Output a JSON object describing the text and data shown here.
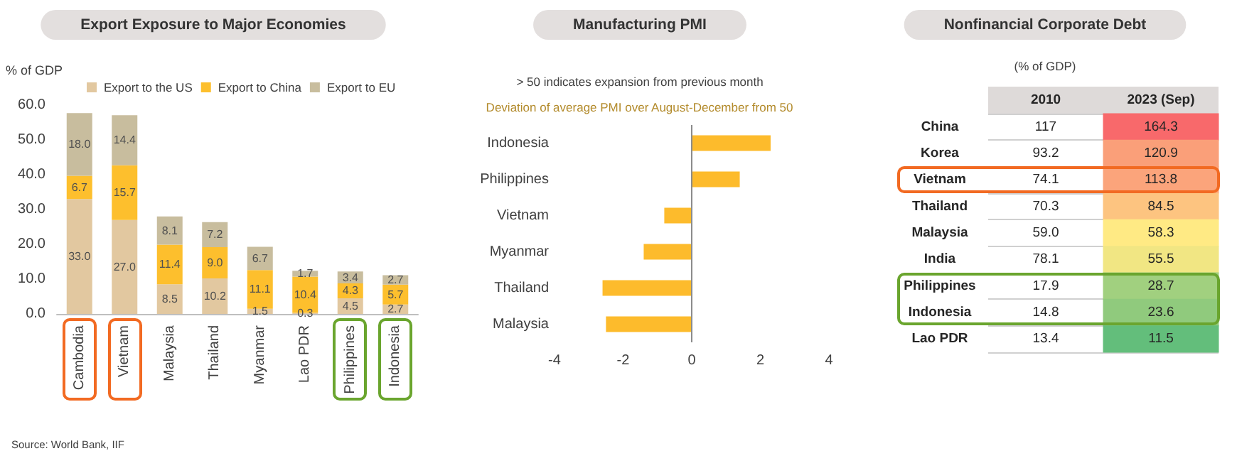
{
  "chart_data": [
    {
      "type": "bar",
      "title": "Export Exposure to Major Economies",
      "ylabel": "% of GDP",
      "stacked": true,
      "legend": "top",
      "categories": [
        "Cambodia",
        "Vietnam",
        "Malaysia",
        "Thailand",
        "Myanmar",
        "Lao PDR",
        "Philippines",
        "Indonesia"
      ],
      "series": [
        {
          "name": "Export to the US",
          "color": "#e2c8a0",
          "values": [
            33.0,
            27.0,
            8.5,
            10.2,
            1.5,
            0.3,
            4.5,
            2.7
          ],
          "value_labels": [
            "33.0",
            "27.0",
            "8.5",
            "10.2",
            "1.5",
            "0.3",
            "4.5",
            "2.7"
          ]
        },
        {
          "name": "Export to China",
          "color": "#fdbf2d",
          "values": [
            6.7,
            15.7,
            11.4,
            9.0,
            11.1,
            10.4,
            4.3,
            5.7
          ],
          "value_labels": [
            "6.7",
            "15.7",
            "11.4",
            "9.0",
            "11.1",
            "10.4",
            "4.3",
            "5.7"
          ]
        },
        {
          "name": "Export to EU",
          "color": "#c8bd9e",
          "values": [
            18.0,
            14.4,
            8.1,
            7.2,
            6.7,
            1.7,
            3.4,
            2.7
          ],
          "value_labels": [
            "18.0",
            "14.4",
            "8.1",
            "7.2",
            "6.7",
            "1.7",
            "3.4",
            "2.7"
          ]
        }
      ],
      "ylim": [
        0,
        60
      ],
      "yticks": [
        {
          "value": 0,
          "label": "0.0"
        },
        {
          "value": 10,
          "label": "10.0"
        },
        {
          "value": 20,
          "label": "20.0"
        },
        {
          "value": 30,
          "label": "30.0"
        },
        {
          "value": 40,
          "label": "40.0"
        },
        {
          "value": 50,
          "label": "50.0"
        },
        {
          "value": 60,
          "label": "60.0"
        }
      ],
      "grid": false,
      "annotations": [
        "Source: World Bank, IIF"
      ]
    },
    {
      "type": "bar",
      "title": "Manufacturing PMI",
      "subtitle": "> 50 indicates expansion from previous month",
      "orientation": "horizontal",
      "categories": [
        "Indonesia",
        "Philippines",
        "Vietnam",
        "Myanmar",
        "Thailand",
        "Malaysia"
      ],
      "values": [
        2.3,
        1.4,
        -0.8,
        -1.4,
        -2.6,
        -2.5
      ],
      "color": "#fdbb2c",
      "xlim": [
        -4,
        4
      ],
      "xticks": [
        -4,
        -2,
        0,
        2,
        4
      ],
      "grid": false,
      "ref_lines": [
        {
          "axis": "x",
          "value": 0,
          "color": "#8c8c8c"
        }
      ],
      "annotations": [
        "Deviation of average PMI over August-December from 50"
      ]
    },
    {
      "type": "heatmap",
      "title": "Nonfinancial Corporate Debt",
      "subtitle": "(% of GDP)",
      "categories": [
        "2010",
        "2023 (Sep)"
      ],
      "y_categories": [
        "China",
        "Korea",
        "Vietnam",
        "Thailand",
        "Malaysia",
        "India",
        "Philippines",
        "Indonesia",
        "Lao PDR"
      ],
      "cells": [
        [
          117,
          164.3
        ],
        [
          93.2,
          120.9
        ],
        [
          74.1,
          113.8
        ],
        [
          70.3,
          84.5
        ],
        [
          59.0,
          58.3
        ],
        [
          78.1,
          55.5
        ],
        [
          17.9,
          28.7
        ],
        [
          14.8,
          23.6
        ],
        [
          13.4,
          11.5
        ]
      ],
      "cell_labels": [
        [
          "117",
          "164.3"
        ],
        [
          "93.2",
          "120.9"
        ],
        [
          "74.1",
          "113.8"
        ],
        [
          "70.3",
          "84.5"
        ],
        [
          "59.0",
          "58.3"
        ],
        [
          "78.1",
          "55.5"
        ],
        [
          "17.9",
          "28.7"
        ],
        [
          "14.8",
          "23.6"
        ],
        [
          "13.4",
          "11.5"
        ]
      ],
      "colors": [
        [
          null,
          "#f8696b"
        ],
        [
          null,
          "#fa9f79"
        ],
        [
          null,
          "#fba47b"
        ],
        [
          null,
          "#fdc480"
        ],
        [
          null,
          "#ffea84"
        ],
        [
          null,
          "#f1e683"
        ],
        [
          null,
          "#a1d07f"
        ],
        [
          null,
          "#90ca7d"
        ],
        [
          null,
          "#63be7b"
        ]
      ],
      "grid": "y"
    }
  ]
}
